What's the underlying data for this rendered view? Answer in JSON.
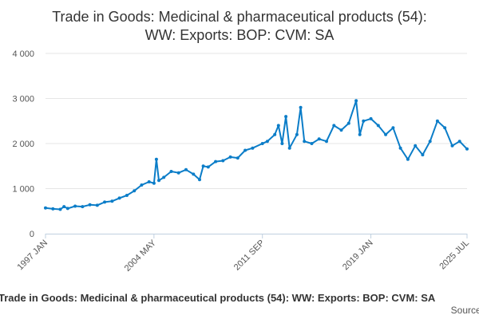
{
  "chart_data": {
    "type": "line",
    "title_lines": [
      "Trade in Goods: Medicinal & pharmaceutical products (54):",
      "WW: Exports: BOP: CVM: SA"
    ],
    "xlabel": "",
    "ylabel": "",
    "x_range": [
      "1997-01",
      "2025-07"
    ],
    "ylim": [
      0,
      4000
    ],
    "y_ticks": [
      0,
      1000,
      2000,
      3000,
      4000
    ],
    "y_tick_labels": [
      "0",
      "1 000",
      "2 000",
      "3 000",
      "4 000"
    ],
    "x_tick_labels": [
      {
        "date": "1997-01",
        "label": "1997 JAN"
      },
      {
        "date": "2004-05",
        "label": "2004 MAY"
      },
      {
        "date": "2011-09",
        "label": "2011 SEP"
      },
      {
        "date": "2019-01",
        "label": "2019 JAN"
      },
      {
        "date": "2025-07",
        "label": "2025 JUL"
      }
    ],
    "grid": "horizontal",
    "series_color": "#0b7dc8",
    "series": [
      {
        "name": "Trade in Goods: Medicinal & pharmaceutical products (54): WW: Exports: BOP: CVM: SA",
        "points": [
          [
            "1997-01",
            570
          ],
          [
            "1997-07",
            550
          ],
          [
            "1998-01",
            540
          ],
          [
            "1998-04",
            600
          ],
          [
            "1998-07",
            560
          ],
          [
            "1999-01",
            610
          ],
          [
            "1999-07",
            600
          ],
          [
            "2000-01",
            640
          ],
          [
            "2000-07",
            630
          ],
          [
            "2001-01",
            700
          ],
          [
            "2001-07",
            720
          ],
          [
            "2002-01",
            790
          ],
          [
            "2002-07",
            850
          ],
          [
            "2003-01",
            950
          ],
          [
            "2003-07",
            1080
          ],
          [
            "2004-01",
            1150
          ],
          [
            "2004-05",
            1120
          ],
          [
            "2004-07",
            1650
          ],
          [
            "2004-09",
            1180
          ],
          [
            "2005-01",
            1250
          ],
          [
            "2005-07",
            1380
          ],
          [
            "2006-01",
            1350
          ],
          [
            "2006-07",
            1420
          ],
          [
            "2007-01",
            1320
          ],
          [
            "2007-06",
            1200
          ],
          [
            "2007-09",
            1500
          ],
          [
            "2008-01",
            1480
          ],
          [
            "2008-07",
            1600
          ],
          [
            "2009-01",
            1620
          ],
          [
            "2009-07",
            1700
          ],
          [
            "2010-01",
            1680
          ],
          [
            "2010-07",
            1850
          ],
          [
            "2011-01",
            1900
          ],
          [
            "2011-09",
            2000
          ],
          [
            "2012-01",
            2050
          ],
          [
            "2012-07",
            2200
          ],
          [
            "2012-10",
            2400
          ],
          [
            "2013-01",
            2000
          ],
          [
            "2013-04",
            2600
          ],
          [
            "2013-07",
            1900
          ],
          [
            "2014-01",
            2200
          ],
          [
            "2014-04",
            2800
          ],
          [
            "2014-07",
            2050
          ],
          [
            "2015-01",
            2000
          ],
          [
            "2015-07",
            2100
          ],
          [
            "2016-01",
            2050
          ],
          [
            "2016-07",
            2400
          ],
          [
            "2017-01",
            2300
          ],
          [
            "2017-07",
            2450
          ],
          [
            "2018-01",
            2950
          ],
          [
            "2018-04",
            2200
          ],
          [
            "2018-07",
            2500
          ],
          [
            "2019-01",
            2550
          ],
          [
            "2019-07",
            2400
          ],
          [
            "2020-01",
            2200
          ],
          [
            "2020-07",
            2350
          ],
          [
            "2021-01",
            1900
          ],
          [
            "2021-07",
            1650
          ],
          [
            "2022-01",
            1950
          ],
          [
            "2022-07",
            1750
          ],
          [
            "2023-01",
            2050
          ],
          [
            "2023-07",
            2500
          ],
          [
            "2024-01",
            2350
          ],
          [
            "2024-07",
            1950
          ],
          [
            "2025-01",
            2050
          ],
          [
            "2025-07",
            1880
          ]
        ]
      }
    ]
  },
  "footer": {
    "legend_text": "Trade in Goods: Medicinal & pharmaceutical products (54): WW: Exports: BOP: CVM: SA",
    "source_text": "Source:"
  }
}
